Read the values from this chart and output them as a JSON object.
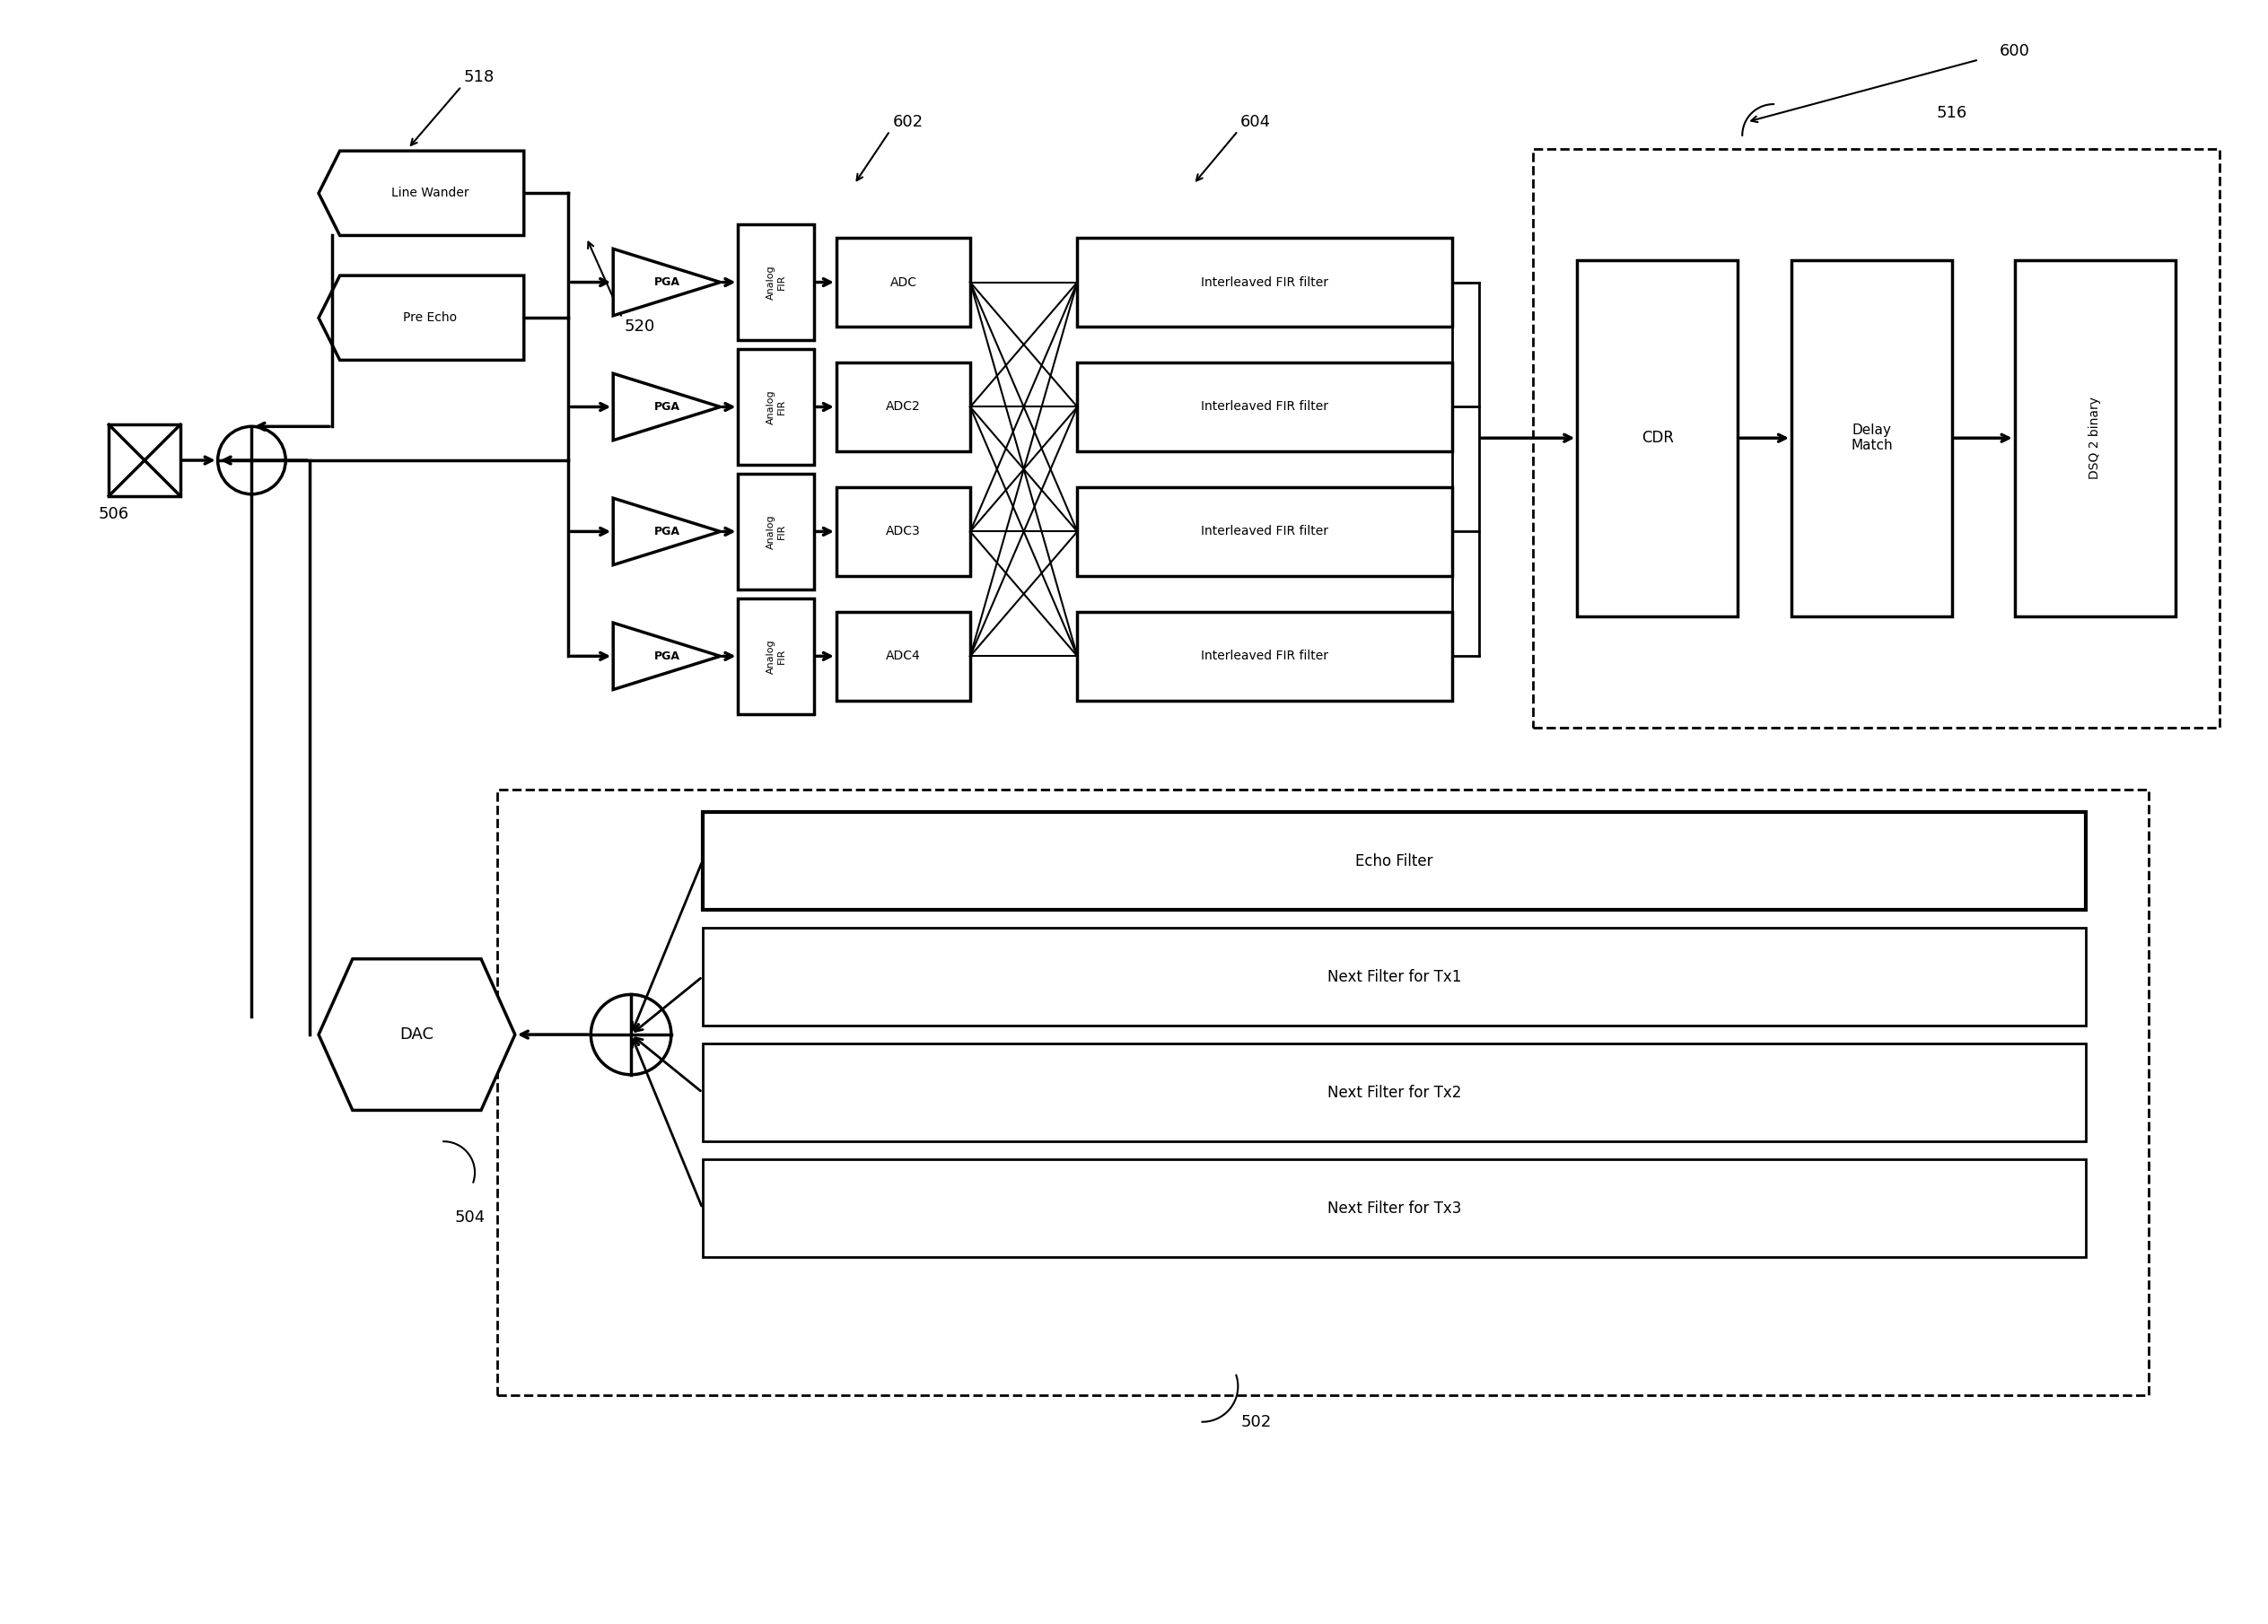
{
  "bg_color": "#ffffff",
  "fig_width": 25.27,
  "fig_height": 18.1,
  "labels": {
    "line_wander": "Line Wander",
    "pre_echo": "Pre Echo",
    "pga": "PGA",
    "analog_fir": "Analog\nFIR",
    "adc1": "ADC",
    "adc2": "ADC2",
    "adc3": "ADC3",
    "adc4": "ADC4",
    "interleaved_fir": "Interleaved FIR filter",
    "cdr": "CDR",
    "delay_match": "Delay\nMatch",
    "dsq2binary": "DSQ 2 binary",
    "dac": "DAC",
    "echo_filter": "Echo Filter",
    "next_tx1": "Next Filter for Tx1",
    "next_tx2": "Next Filter for Tx2",
    "next_tx3": "Next Filter for Tx3"
  },
  "ref_numbers": {
    "n518": "518",
    "n520": "520",
    "n602": "602",
    "n604": "604",
    "n516": "516",
    "n600": "600",
    "n506": "506",
    "n504": "504",
    "n502": "502"
  }
}
